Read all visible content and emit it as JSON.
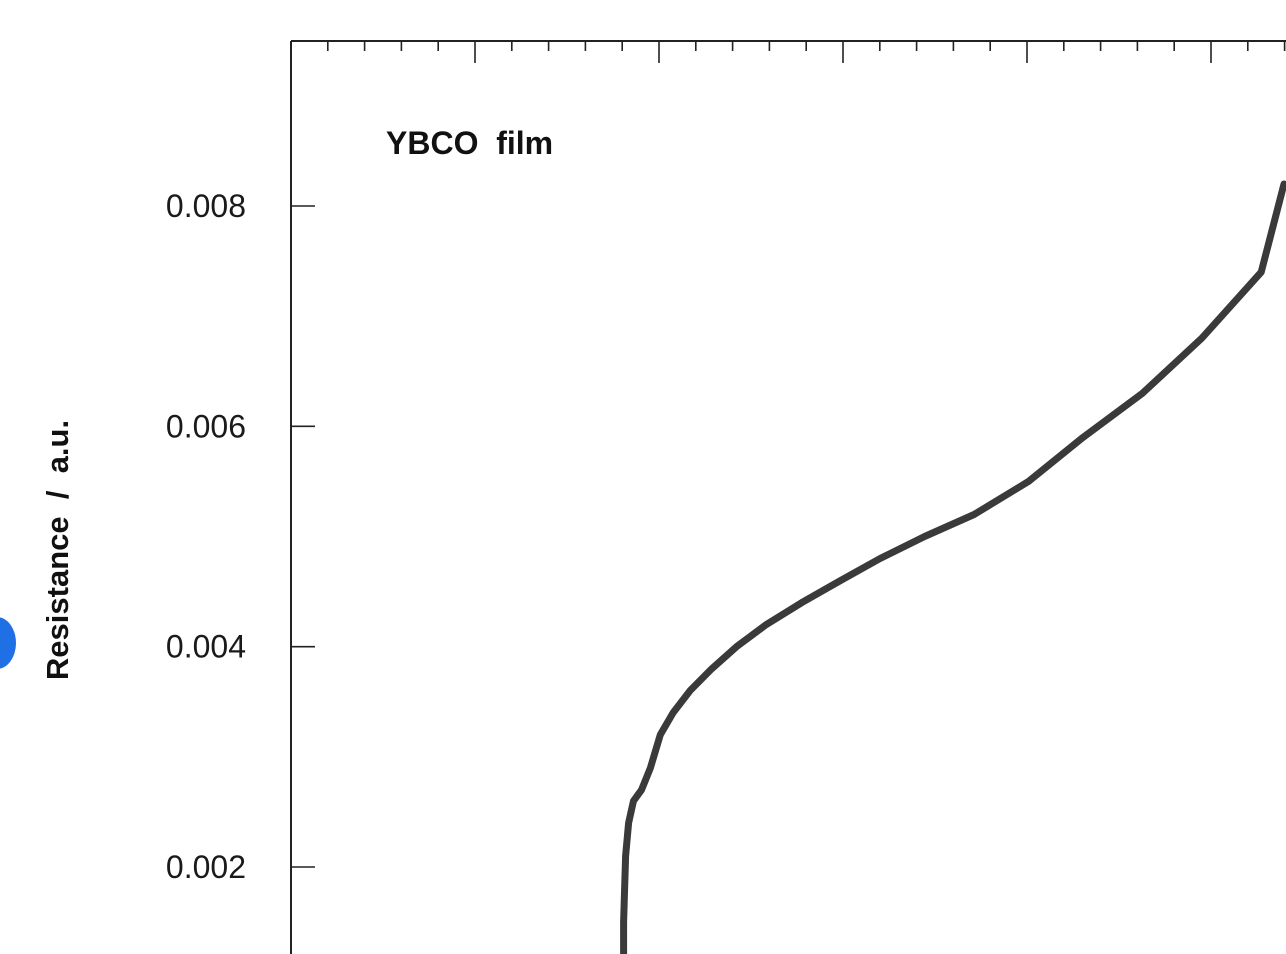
{
  "chart_data": {
    "type": "line",
    "title": "",
    "annotation": "YBCO  film",
    "ylabel": "Resistance  /  a.u.",
    "xlabel": "",
    "ylim": [
      0.0011,
      0.0095
    ],
    "xlim": [
      0,
      100
    ],
    "yticks": [
      {
        "value": 0.002,
        "label": "0.002"
      },
      {
        "value": 0.004,
        "label": "0.004"
      },
      {
        "value": 0.006,
        "label": "0.006"
      },
      {
        "value": 0.008,
        "label": "0.008"
      }
    ],
    "grid": false,
    "series": [
      {
        "color": "#3a3a3a",
        "x": [
          33.6,
          33.6,
          33.7,
          33.8,
          34.1,
          34.6,
          35.4,
          36.3,
          37.3,
          38.6,
          40.3,
          42.5,
          45.0,
          48.0,
          51.6,
          55.5,
          59.5,
          64.0,
          69.0,
          74.5,
          80.0,
          86.0,
          92.0,
          98.0,
          100.3
        ],
        "y": [
          0.0011,
          0.0015,
          0.0018,
          0.0021,
          0.0024,
          0.0026,
          0.0027,
          0.0029,
          0.0032,
          0.0034,
          0.0036,
          0.0038,
          0.004,
          0.0042,
          0.0044,
          0.0046,
          0.0048,
          0.005,
          0.0052,
          0.0055,
          0.0059,
          0.0063,
          0.0068,
          0.0074,
          0.0082
        ]
      }
    ]
  },
  "marker": {
    "color": "#1f6fe5"
  }
}
